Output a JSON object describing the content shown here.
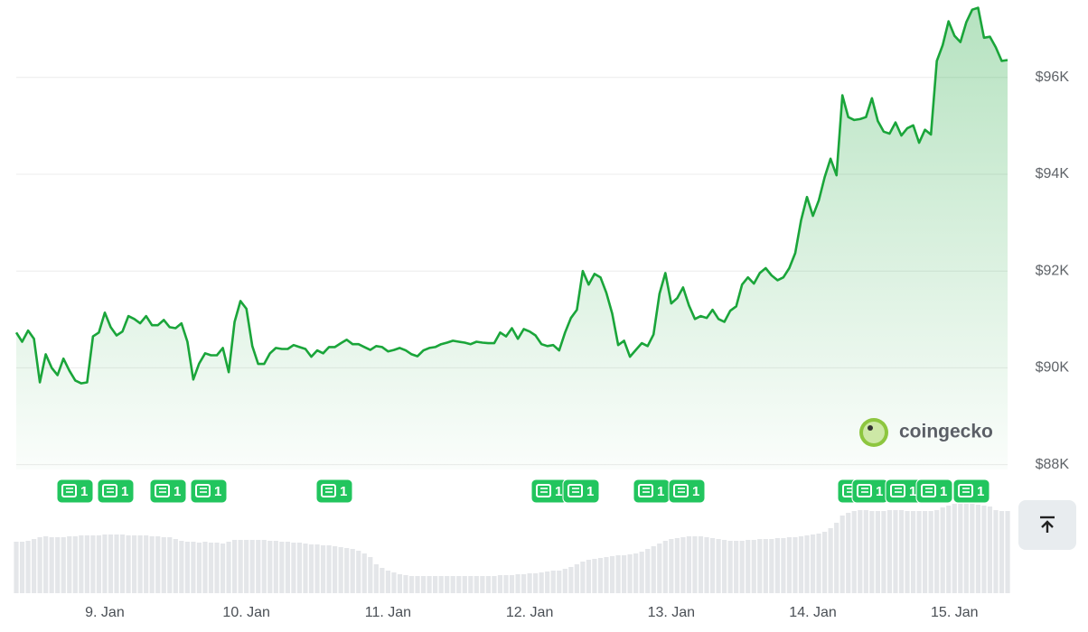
{
  "chart_data": {
    "type": "line",
    "categories": [
      null,
      null,
      null,
      null,
      null,
      null,
      null,
      null,
      null,
      null,
      null,
      null,
      null,
      null,
      null,
      "9. Jan",
      null,
      null,
      null,
      null,
      null,
      null,
      null,
      null,
      null,
      null,
      null,
      null,
      null,
      null,
      null,
      null,
      null,
      null,
      null,
      null,
      null,
      null,
      null,
      "10. Jan",
      null,
      null,
      null,
      null,
      null,
      null,
      null,
      null,
      null,
      null,
      null,
      null,
      null,
      null,
      null,
      null,
      null,
      null,
      null,
      null,
      null,
      null,
      null,
      "11. Jan",
      null,
      null,
      null,
      null,
      null,
      null,
      null,
      null,
      null,
      null,
      null,
      null,
      null,
      null,
      null,
      null,
      null,
      null,
      null,
      null,
      null,
      null,
      null,
      "12. Jan",
      null,
      null,
      null,
      null,
      null,
      null,
      null,
      null,
      null,
      null,
      null,
      null,
      null,
      null,
      null,
      null,
      null,
      null,
      null,
      null,
      null,
      null,
      null,
      "13. Jan",
      null,
      null,
      null,
      null,
      null,
      null,
      null,
      null,
      null,
      null,
      null,
      null,
      null,
      null,
      null,
      null,
      null,
      null,
      null,
      null,
      null,
      null,
      null,
      "14. Jan",
      null,
      null,
      null,
      null,
      null,
      null,
      null,
      null,
      null,
      null,
      null,
      null,
      null,
      null,
      null,
      null,
      null,
      null,
      null,
      null,
      null,
      null,
      null,
      "15. Jan",
      null,
      null,
      null,
      null,
      null,
      null,
      null,
      null,
      null
    ],
    "series": [
      {
        "color": "#1aa53a",
        "values": [
          90730,
          90540,
          90770,
          90600,
          89700,
          90280,
          90000,
          89850,
          90190,
          89940,
          89740,
          89680,
          89700,
          90650,
          90730,
          91140,
          90840,
          90670,
          90750,
          91070,
          91010,
          90920,
          91070,
          90880,
          90880,
          90990,
          90840,
          90820,
          90920,
          90540,
          89760,
          90090,
          90300,
          90260,
          90260,
          90410,
          89910,
          90950,
          91380,
          91220,
          90450,
          90080,
          90080,
          90300,
          90410,
          90390,
          90390,
          90470,
          90430,
          90390,
          90230,
          90360,
          90300,
          90430,
          90430,
          90510,
          90580,
          90490,
          90490,
          90430,
          90370,
          90450,
          90430,
          90340,
          90370,
          90410,
          90360,
          90280,
          90240,
          90360,
          90410,
          90430,
          90490,
          90520,
          90560,
          90540,
          90520,
          90490,
          90540,
          90520,
          90510,
          90510,
          90730,
          90650,
          90820,
          90600,
          90800,
          90750,
          90670,
          90490,
          90450,
          90470,
          90360,
          90730,
          91030,
          91200,
          92000,
          91720,
          91940,
          91870,
          91550,
          91120,
          90470,
          90560,
          90230,
          90370,
          90510,
          90450,
          90690,
          91530,
          91960,
          91330,
          91440,
          91660,
          91290,
          91010,
          91070,
          91030,
          91200,
          91010,
          90950,
          91180,
          91270,
          91720,
          91870,
          91740,
          91960,
          92060,
          91910,
          91810,
          91870,
          92060,
          92370,
          93050,
          93530,
          93140,
          93460,
          93940,
          94320,
          93980,
          95630,
          95180,
          95120,
          95140,
          95180,
          95570,
          95100,
          94880,
          94840,
          95070,
          94800,
          94950,
          95010,
          94650,
          94920,
          94820,
          96340,
          96670,
          97160,
          96860,
          96730,
          97140,
          97400,
          97440,
          96820,
          96840,
          96620,
          96340,
          96360
        ]
      }
    ],
    "volume": {
      "color": "#e4e6e9",
      "vlim": [
        0,
        100
      ],
      "values": [
        57,
        57,
        58,
        60,
        62,
        63,
        62,
        62,
        62,
        63,
        63,
        64,
        64,
        64,
        64,
        65,
        65,
        65,
        65,
        64,
        64,
        64,
        64,
        63,
        63,
        62,
        62,
        60,
        58,
        57,
        57,
        56,
        57,
        56,
        56,
        55,
        57,
        59,
        59,
        59,
        59,
        59,
        59,
        58,
        58,
        57,
        57,
        56,
        56,
        55,
        54,
        54,
        53,
        53,
        52,
        51,
        50,
        49,
        47,
        44,
        40,
        32,
        28,
        25,
        23,
        21,
        20,
        19,
        19,
        19,
        19,
        19,
        19,
        19,
        19,
        19,
        19,
        19,
        19,
        19,
        19,
        19,
        20,
        20,
        20,
        21,
        21,
        22,
        22,
        23,
        24,
        25,
        25,
        27,
        29,
        32,
        35,
        37,
        38,
        39,
        40,
        41,
        42,
        42,
        43,
        44,
        46,
        49,
        52,
        55,
        58,
        60,
        61,
        62,
        63,
        63,
        63,
        62,
        61,
        60,
        59,
        58,
        58,
        58,
        59,
        59,
        60,
        60,
        60,
        61,
        61,
        62,
        62,
        63,
        64,
        65,
        66,
        68,
        72,
        78,
        86,
        89,
        91,
        92,
        92,
        91,
        91,
        91,
        92,
        92,
        92,
        91,
        91,
        91,
        91,
        91,
        92,
        95,
        97,
        99,
        99,
        99,
        99,
        98,
        97,
        96,
        92,
        91,
        91
      ]
    },
    "ylim": [
      87900,
      97600
    ],
    "yticks": [
      {
        "value": 88000,
        "label": "$88K"
      },
      {
        "value": 90000,
        "label": "$90K"
      },
      {
        "value": 92000,
        "label": "$92K"
      },
      {
        "value": 94000,
        "label": "$94K"
      },
      {
        "value": 96000,
        "label": "$96K"
      }
    ],
    "grid": true,
    "news_markers": [
      "1",
      "1",
      "1",
      "1",
      "1",
      "1",
      "1",
      "1",
      "1",
      "1",
      "1",
      "1",
      "1",
      "1"
    ],
    "watermark": "coingecko"
  }
}
